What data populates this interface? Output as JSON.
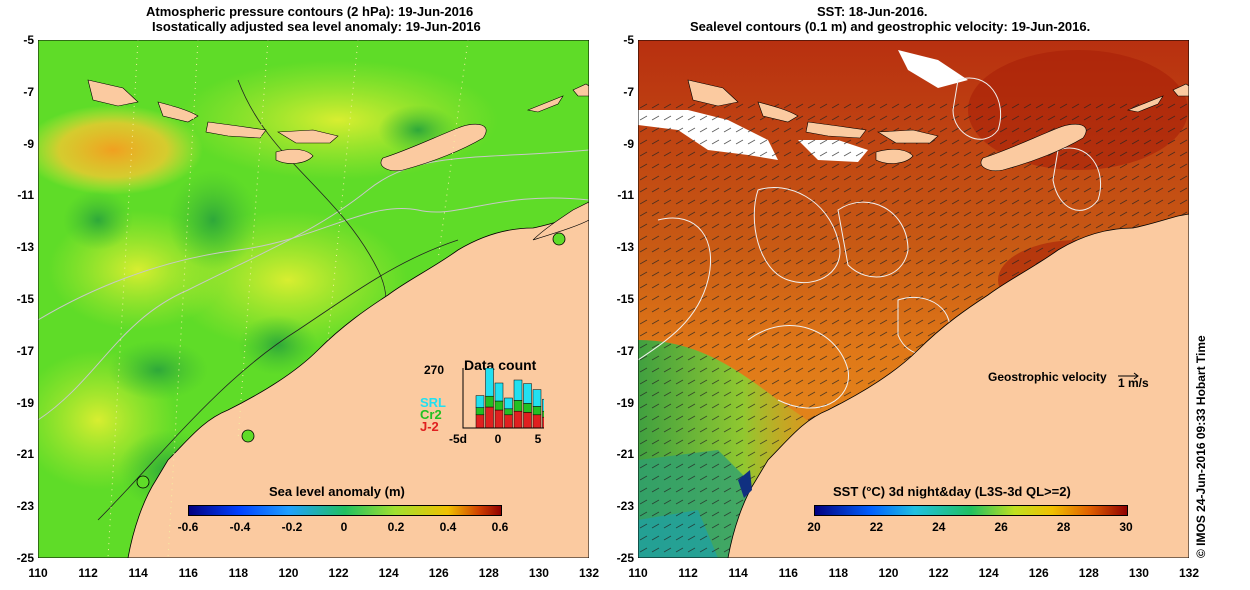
{
  "left": {
    "title_line1": "Atmospheric pressure contours (2 hPa): 19-Jun-2016",
    "title_line2": "Isostatically adjusted sea level anomaly: 19-Jun-2016",
    "colorbar_label": "Sea level anomaly (m)",
    "colorbar_ticks": [
      "-0.6",
      "-0.4",
      "-0.2",
      "0",
      "0.2",
      "0.4",
      "0.6"
    ],
    "data_count": {
      "title": "Data count",
      "max_label": "270",
      "x_ticks": [
        "-5d",
        "0",
        "5"
      ],
      "legend": [
        {
          "name": "SRL",
          "color": "#22e0f0"
        },
        {
          "name": "Cr2",
          "color": "#22c022"
        },
        {
          "name": "J-2",
          "color": "#e02020"
        }
      ],
      "bars": [
        {
          "j2": 0.22,
          "cr2": 0.12,
          "srl": 0.2
        },
        {
          "j2": 0.35,
          "cr2": 0.18,
          "srl": 0.47
        },
        {
          "j2": 0.3,
          "cr2": 0.15,
          "srl": 0.3
        },
        {
          "j2": 0.22,
          "cr2": 0.1,
          "srl": 0.18
        },
        {
          "j2": 0.28,
          "cr2": 0.18,
          "srl": 0.34
        },
        {
          "j2": 0.26,
          "cr2": 0.15,
          "srl": 0.33
        },
        {
          "j2": 0.22,
          "cr2": 0.14,
          "srl": 0.28
        },
        {
          "j2": 0.18,
          "cr2": 0.1,
          "srl": 0.2
        }
      ]
    }
  },
  "right": {
    "title_line1": "SST: 18-Jun-2016.",
    "title_line2": "Sealevel contours (0.1 m) and geostrophic velocity: 19-Jun-2016.",
    "colorbar_label": "SST (°C) 3d night&day (L3S-3d QL>=2)",
    "colorbar_ticks": [
      "20",
      "22",
      "24",
      "26",
      "28",
      "30"
    ],
    "velocity_label": "Geostrophic velocity",
    "velocity_scale": "1 m/s"
  },
  "axes": {
    "lon_ticks": [
      "110",
      "112",
      "114",
      "116",
      "118",
      "120",
      "122",
      "124",
      "126",
      "128",
      "130",
      "132"
    ],
    "lat_ticks": [
      "-5",
      "-7",
      "-9",
      "-11",
      "-13",
      "-15",
      "-17",
      "-19",
      "-21",
      "-23",
      "-25"
    ]
  },
  "credit": "© IMOS 24-Jun-2016 09:33 Hobart Time",
  "colors": {
    "land": "#fbcaa0",
    "left_sea": "#5fdc28",
    "right_sea": "#c85a14"
  }
}
